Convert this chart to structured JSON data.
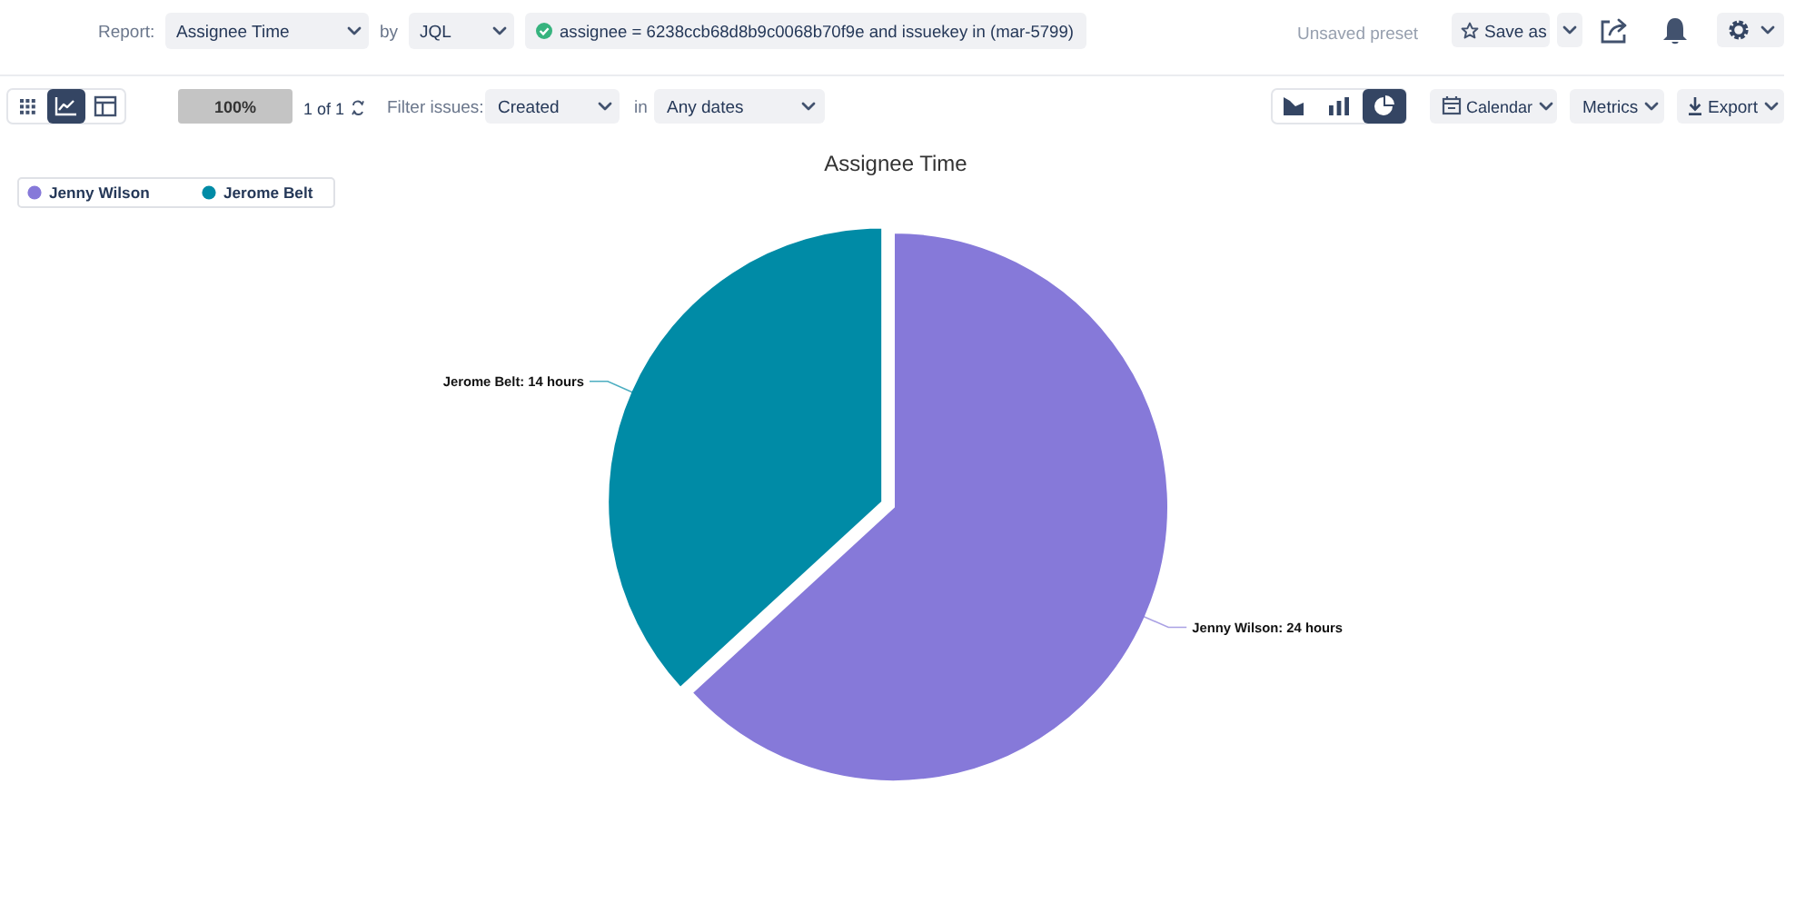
{
  "chart_data": {
    "type": "pie",
    "title": "Assignee Time",
    "categories": [
      "Jenny Wilson",
      "Jerome Belt"
    ],
    "values": [
      24,
      14
    ],
    "colors": [
      "#8679d9",
      "#008ba6"
    ],
    "value_labels": [
      "Jenny Wilson: 24 hours",
      "Jerome Belt: 14 hours"
    ],
    "legend": "top left",
    "annotations": [
      "Report:",
      "Assignee Time",
      "by",
      "JQL",
      "assignee = 6238ccb68d8b9c0068b70f9e and issuekey in (mar-5799)",
      "Unsaved preset",
      "Save as",
      "100%",
      "1 of 1",
      "Filter issues:",
      "Created",
      "in",
      "Any dates",
      "Calendar",
      "Metrics",
      "Export"
    ]
  }
}
